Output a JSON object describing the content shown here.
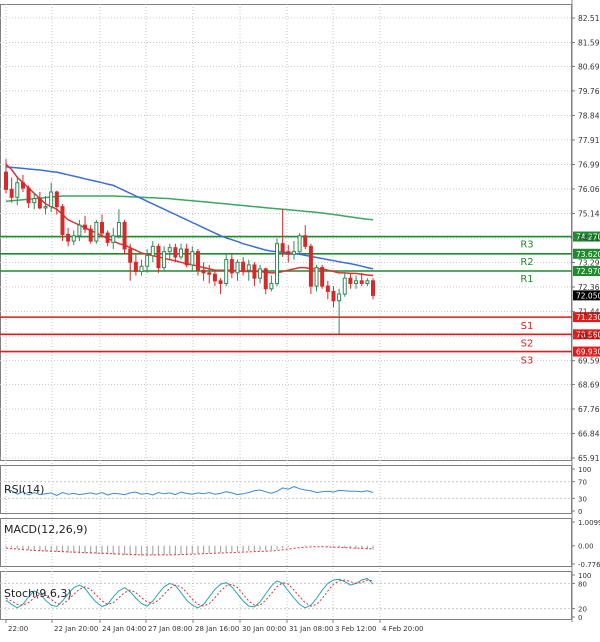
{
  "colors": {
    "up": "#2e8b57",
    "down": "#d42a2a",
    "ma_fast": "#e03030",
    "ma_mid": "#3a6fd8",
    "ma_slow": "#3aa85a",
    "resistance": "#1e8c2e",
    "support": "#e01b1b",
    "rsi": "#3a8ad8",
    "macd": "#aaaaaa",
    "stoch_main": "#2aa5b5",
    "stoch_signal": "#e03030",
    "grid": "#c8c8c8",
    "current_price_bg": "#000000"
  },
  "chart_data": [
    {
      "type": "candlestick",
      "title": "",
      "y_ticks": [
        "82.515",
        "81.590",
        "80.690",
        "79.765",
        "78.840",
        "77.915",
        "76.990",
        "76.065",
        "75.140",
        "74.215",
        "73.290",
        "72.365",
        "71.440",
        "70.515",
        "69.590",
        "68.690",
        "67.765",
        "66.840",
        "65.915"
      ],
      "ylim": [
        65.915,
        82.515
      ],
      "x_labels": [
        "22:00",
        "22 Jan 20:00",
        "24 Jan 04:00",
        "27 Jan 08:00",
        "28 Jan 16:00",
        "30 Jan 00:00",
        "31 Jan 08:00",
        "3 Feb 12:00",
        "4 Feb 20:00"
      ],
      "candles": [
        {
          "o": 76.7,
          "h": 77.2,
          "l": 75.9,
          "c": 76.05
        },
        {
          "o": 76.05,
          "h": 76.5,
          "l": 75.55,
          "c": 75.75
        },
        {
          "o": 75.75,
          "h": 76.55,
          "l": 75.45,
          "c": 76.3
        },
        {
          "o": 76.3,
          "h": 76.6,
          "l": 75.95,
          "c": 76.1
        },
        {
          "o": 76.1,
          "h": 76.2,
          "l": 75.35,
          "c": 75.55
        },
        {
          "o": 75.55,
          "h": 75.9,
          "l": 75.3,
          "c": 75.7
        },
        {
          "o": 75.7,
          "h": 75.95,
          "l": 75.3,
          "c": 75.35
        },
        {
          "o": 75.35,
          "h": 75.8,
          "l": 75.1,
          "c": 75.4
        },
        {
          "o": 75.4,
          "h": 76.3,
          "l": 75.2,
          "c": 75.95
        },
        {
          "o": 75.95,
          "h": 76.0,
          "l": 75.1,
          "c": 75.4
        },
        {
          "o": 75.4,
          "h": 75.5,
          "l": 74.1,
          "c": 74.35
        },
        {
          "o": 74.35,
          "h": 74.6,
          "l": 73.9,
          "c": 74.1
        },
        {
          "o": 74.1,
          "h": 74.5,
          "l": 73.95,
          "c": 74.3
        },
        {
          "o": 74.3,
          "h": 74.9,
          "l": 74.1,
          "c": 74.7
        },
        {
          "o": 74.7,
          "h": 75.05,
          "l": 74.4,
          "c": 74.55
        },
        {
          "o": 74.55,
          "h": 74.7,
          "l": 74.0,
          "c": 74.1
        },
        {
          "o": 74.1,
          "h": 74.9,
          "l": 74.0,
          "c": 74.8
        },
        {
          "o": 74.8,
          "h": 75.1,
          "l": 74.3,
          "c": 74.4
        },
        {
          "o": 74.4,
          "h": 74.5,
          "l": 73.9,
          "c": 74.05
        },
        {
          "o": 74.05,
          "h": 74.6,
          "l": 73.8,
          "c": 74.3
        },
        {
          "o": 74.3,
          "h": 75.3,
          "l": 74.2,
          "c": 74.8
        },
        {
          "o": 74.8,
          "h": 74.9,
          "l": 73.6,
          "c": 73.8
        },
        {
          "o": 73.8,
          "h": 74.0,
          "l": 72.6,
          "c": 73.3
        },
        {
          "o": 73.3,
          "h": 73.6,
          "l": 72.8,
          "c": 72.95
        },
        {
          "o": 72.95,
          "h": 73.4,
          "l": 72.8,
          "c": 73.15
        },
        {
          "o": 73.15,
          "h": 73.8,
          "l": 72.9,
          "c": 73.55
        },
        {
          "o": 73.55,
          "h": 74.1,
          "l": 73.3,
          "c": 73.9
        },
        {
          "o": 73.9,
          "h": 74.0,
          "l": 72.9,
          "c": 73.1
        },
        {
          "o": 73.1,
          "h": 73.9,
          "l": 73.0,
          "c": 73.7
        },
        {
          "o": 73.7,
          "h": 74.0,
          "l": 73.4,
          "c": 73.85
        },
        {
          "o": 73.85,
          "h": 74.0,
          "l": 73.3,
          "c": 73.5
        },
        {
          "o": 73.5,
          "h": 74.0,
          "l": 73.4,
          "c": 73.8
        },
        {
          "o": 73.8,
          "h": 74.0,
          "l": 73.1,
          "c": 73.2
        },
        {
          "o": 73.2,
          "h": 73.9,
          "l": 73.0,
          "c": 73.7
        },
        {
          "o": 73.7,
          "h": 73.8,
          "l": 72.8,
          "c": 73.0
        },
        {
          "o": 73.0,
          "h": 73.3,
          "l": 72.6,
          "c": 72.9
        },
        {
          "o": 72.9,
          "h": 73.2,
          "l": 72.5,
          "c": 72.85
        },
        {
          "o": 72.85,
          "h": 73.0,
          "l": 72.4,
          "c": 72.6
        },
        {
          "o": 72.6,
          "h": 72.7,
          "l": 72.1,
          "c": 72.5
        },
        {
          "o": 72.5,
          "h": 73.6,
          "l": 72.4,
          "c": 73.4
        },
        {
          "o": 73.4,
          "h": 73.6,
          "l": 72.7,
          "c": 72.9
        },
        {
          "o": 72.9,
          "h": 73.4,
          "l": 72.6,
          "c": 73.3
        },
        {
          "o": 73.3,
          "h": 73.5,
          "l": 72.8,
          "c": 73.0
        },
        {
          "o": 73.0,
          "h": 73.4,
          "l": 72.6,
          "c": 73.2
        },
        {
          "o": 73.2,
          "h": 73.3,
          "l": 72.4,
          "c": 72.7
        },
        {
          "o": 72.7,
          "h": 73.2,
          "l": 72.5,
          "c": 73.05
        },
        {
          "o": 73.05,
          "h": 73.1,
          "l": 72.1,
          "c": 72.3
        },
        {
          "o": 72.3,
          "h": 72.8,
          "l": 72.2,
          "c": 72.5
        },
        {
          "o": 72.5,
          "h": 74.2,
          "l": 72.4,
          "c": 74.0
        },
        {
          "o": 74.0,
          "h": 75.3,
          "l": 73.5,
          "c": 73.7
        },
        {
          "o": 73.7,
          "h": 73.95,
          "l": 73.3,
          "c": 73.6
        },
        {
          "o": 73.6,
          "h": 74.1,
          "l": 73.4,
          "c": 73.7
        },
        {
          "o": 73.7,
          "h": 74.4,
          "l": 73.6,
          "c": 74.3
        },
        {
          "o": 74.3,
          "h": 74.7,
          "l": 73.8,
          "c": 73.9
        },
        {
          "o": 73.9,
          "h": 74.0,
          "l": 72.1,
          "c": 72.4
        },
        {
          "o": 72.4,
          "h": 73.2,
          "l": 72.2,
          "c": 73.1
        },
        {
          "o": 73.1,
          "h": 73.2,
          "l": 72.3,
          "c": 72.4
        },
        {
          "o": 72.4,
          "h": 72.6,
          "l": 71.9,
          "c": 72.2
        },
        {
          "o": 72.2,
          "h": 72.4,
          "l": 71.6,
          "c": 71.85
        },
        {
          "o": 71.85,
          "h": 72.3,
          "l": 70.6,
          "c": 72.1
        },
        {
          "o": 72.1,
          "h": 72.9,
          "l": 72.0,
          "c": 72.7
        },
        {
          "o": 72.7,
          "h": 72.9,
          "l": 72.3,
          "c": 72.5
        },
        {
          "o": 72.5,
          "h": 72.8,
          "l": 72.3,
          "c": 72.6
        },
        {
          "o": 72.6,
          "h": 72.9,
          "l": 72.4,
          "c": 72.5
        },
        {
          "o": 72.5,
          "h": 72.7,
          "l": 72.4,
          "c": 72.6
        },
        {
          "o": 72.6,
          "h": 72.7,
          "l": 71.9,
          "c": 72.05
        }
      ],
      "ma_fast": [
        77.0,
        76.8,
        76.5,
        76.3,
        76.1,
        75.9,
        75.7,
        75.5,
        75.4,
        75.3,
        75.1,
        74.9,
        74.8,
        74.7,
        74.6,
        74.5,
        74.4,
        74.3,
        74.2,
        74.1,
        74.0,
        73.95,
        73.85,
        73.75,
        73.65,
        73.6,
        73.55,
        73.5,
        73.45,
        73.4,
        73.35,
        73.3,
        73.25,
        73.2,
        73.15,
        73.1,
        73.05,
        73.0,
        73.0,
        73.0,
        73.0,
        72.98,
        72.95,
        72.95,
        72.95,
        72.95,
        72.92,
        72.9,
        72.9,
        72.95,
        73.0,
        73.05,
        73.1,
        73.1,
        73.05,
        73.05,
        73.05,
        73.0,
        72.95,
        72.9,
        72.9,
        72.88,
        72.88,
        72.85,
        72.82,
        72.8
      ],
      "ma_mid": [
        76.9,
        76.88,
        76.86,
        76.84,
        76.82,
        76.8,
        76.78,
        76.75,
        76.72,
        76.7,
        76.65,
        76.6,
        76.55,
        76.5,
        76.45,
        76.4,
        76.35,
        76.3,
        76.25,
        76.2,
        76.1,
        76.0,
        75.9,
        75.8,
        75.7,
        75.6,
        75.5,
        75.4,
        75.3,
        75.2,
        75.1,
        75.0,
        74.9,
        74.8,
        74.7,
        74.6,
        74.5,
        74.4,
        74.3,
        74.22,
        74.15,
        74.08,
        74.0,
        73.94,
        73.88,
        73.82,
        73.76,
        73.72,
        73.7,
        73.68,
        73.66,
        73.63,
        73.6,
        73.56,
        73.52,
        73.48,
        73.44,
        73.4,
        73.36,
        73.32,
        73.28,
        73.25,
        73.2,
        73.15,
        73.1,
        73.05
      ],
      "ma_slow": [
        75.6,
        75.62,
        75.64,
        75.66,
        75.68,
        75.7,
        75.72,
        75.74,
        75.76,
        75.78,
        75.8,
        75.8,
        75.8,
        75.8,
        75.8,
        75.8,
        75.8,
        75.8,
        75.8,
        75.8,
        75.79,
        75.78,
        75.77,
        75.76,
        75.75,
        75.74,
        75.73,
        75.72,
        75.71,
        75.7,
        75.68,
        75.66,
        75.64,
        75.62,
        75.6,
        75.58,
        75.56,
        75.54,
        75.52,
        75.5,
        75.48,
        75.46,
        75.44,
        75.42,
        75.4,
        75.38,
        75.36,
        75.34,
        75.32,
        75.3,
        75.28,
        75.26,
        75.24,
        75.22,
        75.2,
        75.18,
        75.16,
        75.13,
        75.1,
        75.07,
        75.04,
        75.01,
        74.98,
        74.95,
        74.92,
        74.9
      ],
      "levels": [
        {
          "name": "R3",
          "value": 74.27,
          "label": "74.270"
        },
        {
          "name": "R2",
          "value": 73.62,
          "label": "73.620"
        },
        {
          "name": "R1",
          "value": 72.97,
          "label": "72.970"
        },
        {
          "name": "S1",
          "value": 71.23,
          "label": "71.230"
        },
        {
          "name": "S2",
          "value": 70.58,
          "label": "70.580"
        },
        {
          "name": "S3",
          "value": 69.93,
          "label": "69.930"
        }
      ],
      "current_price": "72.050"
    },
    {
      "type": "line",
      "title": "RSI(14)",
      "y_ticks": [
        "100",
        "70",
        "30",
        "0"
      ],
      "ylim": [
        0,
        100
      ],
      "series": [
        {
          "values": [
            52,
            48,
            40,
            46,
            38,
            44,
            39,
            41,
            43,
            37,
            44,
            40,
            42,
            39,
            41,
            43,
            40,
            44,
            38,
            42,
            41,
            39,
            43,
            45,
            40,
            42,
            38,
            44,
            41,
            43,
            39,
            45,
            42,
            40,
            43,
            41,
            44,
            40,
            42,
            46,
            43,
            39,
            41,
            44,
            48,
            50,
            46,
            42,
            47,
            55,
            52,
            58,
            53,
            50,
            48,
            44,
            46,
            47,
            45,
            49,
            48,
            47,
            47,
            46,
            48,
            44
          ]
        }
      ]
    },
    {
      "type": "bar",
      "title": "MACD(12,26,9)",
      "y_ticks": [
        "1.0099",
        "0.00",
        "-0.7763"
      ],
      "ylim": [
        -0.7763,
        1.0099
      ],
      "values": [
        -0.05,
        -0.08,
        -0.12,
        -0.15,
        -0.18,
        -0.2,
        -0.22,
        -0.24,
        -0.25,
        -0.26,
        -0.28,
        -0.3,
        -0.31,
        -0.32,
        -0.33,
        -0.34,
        -0.35,
        -0.36,
        -0.37,
        -0.38,
        -0.39,
        -0.4,
        -0.41,
        -0.42,
        -0.42,
        -0.42,
        -0.41,
        -0.4,
        -0.4,
        -0.39,
        -0.38,
        -0.37,
        -0.36,
        -0.35,
        -0.34,
        -0.33,
        -0.32,
        -0.31,
        -0.3,
        -0.28,
        -0.26,
        -0.25,
        -0.24,
        -0.23,
        -0.22,
        -0.21,
        -0.2,
        -0.18,
        -0.16,
        -0.1,
        -0.05,
        -0.02,
        0.0,
        0.02,
        0.02,
        0.0,
        -0.02,
        -0.04,
        -0.06,
        -0.08,
        -0.1,
        -0.12,
        -0.13,
        -0.14,
        -0.15,
        -0.16
      ],
      "signal": [
        -0.1,
        -0.12,
        -0.14,
        -0.16,
        -0.18,
        -0.2,
        -0.21,
        -0.22,
        -0.23,
        -0.24,
        -0.25,
        -0.26,
        -0.27,
        -0.28,
        -0.29,
        -0.3,
        -0.31,
        -0.32,
        -0.33,
        -0.34,
        -0.35,
        -0.36,
        -0.37,
        -0.38,
        -0.39,
        -0.39,
        -0.39,
        -0.39,
        -0.39,
        -0.39,
        -0.38,
        -0.38,
        -0.37,
        -0.36,
        -0.35,
        -0.34,
        -0.33,
        -0.32,
        -0.31,
        -0.3,
        -0.29,
        -0.28,
        -0.27,
        -0.26,
        -0.25,
        -0.24,
        -0.23,
        -0.22,
        -0.2,
        -0.17,
        -0.14,
        -0.11,
        -0.08,
        -0.06,
        -0.05,
        -0.04,
        -0.04,
        -0.05,
        -0.06,
        -0.07,
        -0.08,
        -0.09,
        -0.1,
        -0.11,
        -0.12,
        -0.13
      ]
    },
    {
      "type": "line",
      "title": "Stoch(9,6,3)",
      "y_ticks": [
        "100",
        "80",
        "20",
        "0"
      ],
      "ylim": [
        0,
        100
      ],
      "series": [
        {
          "values": [
            40,
            30,
            22,
            30,
            48,
            62,
            55,
            40,
            28,
            25,
            38,
            55,
            70,
            76,
            68,
            50,
            35,
            25,
            30,
            48,
            62,
            70,
            60,
            45,
            32,
            26,
            38,
            56,
            72,
            80,
            75,
            58,
            40,
            28,
            22,
            30,
            48,
            66,
            78,
            82,
            72,
            55,
            38,
            26,
            24,
            36,
            55,
            74,
            86,
            80,
            62,
            45,
            30,
            22,
            28,
            44,
            64,
            80,
            88,
            90,
            84,
            76,
            80,
            88,
            92,
            78
          ]
        },
        {
          "values": [
            45,
            38,
            30,
            28,
            34,
            46,
            54,
            52,
            42,
            32,
            30,
            40,
            54,
            66,
            72,
            66,
            52,
            38,
            30,
            34,
            46,
            58,
            64,
            58,
            46,
            36,
            32,
            40,
            54,
            68,
            76,
            72,
            58,
            42,
            30,
            26,
            32,
            46,
            62,
            74,
            78,
            70,
            54,
            38,
            28,
            28,
            40,
            56,
            72,
            82,
            78,
            64,
            48,
            34,
            26,
            30,
            44,
            62,
            78,
            86,
            88,
            84,
            80,
            82,
            88,
            86
          ]
        }
      ]
    }
  ]
}
